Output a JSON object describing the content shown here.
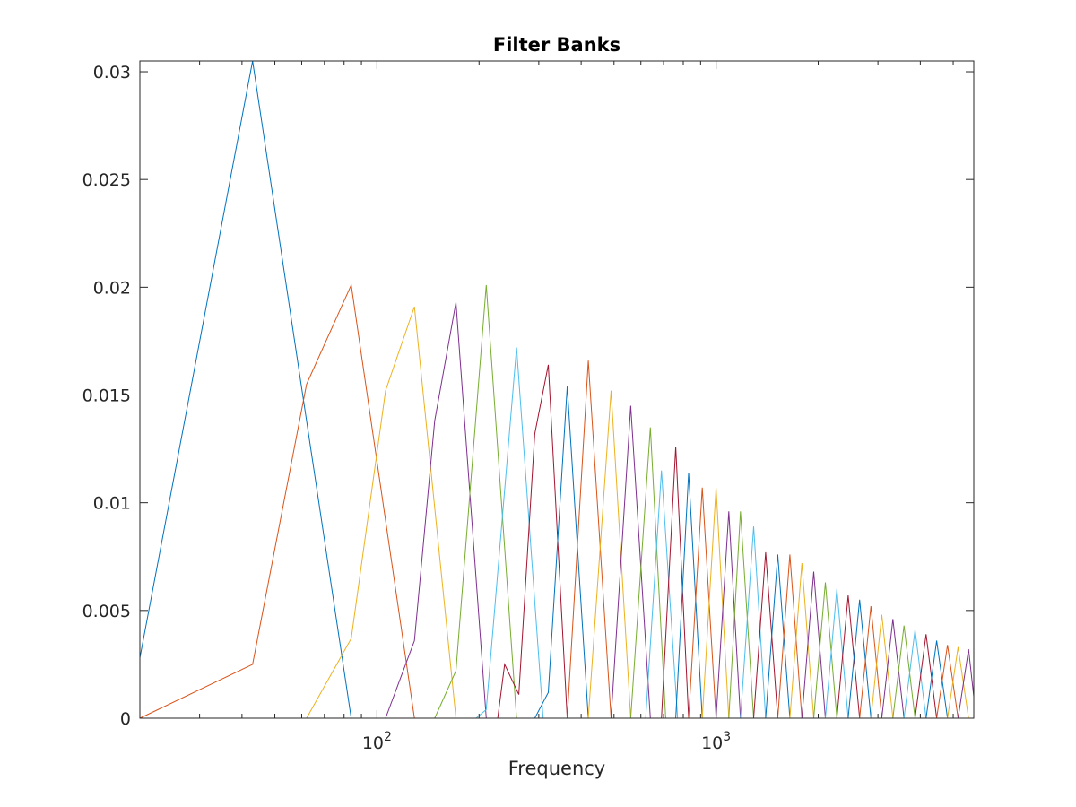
{
  "chart_data": {
    "type": "line",
    "title": "Filter Banks",
    "xlabel": "Frequency",
    "ylabel": "",
    "x_scale": "log",
    "xlim": [
      20,
      5750
    ],
    "ylim": [
      0,
      0.0305
    ],
    "grid": false,
    "legend": "none",
    "y_ticks": [
      0,
      0.005,
      0.01,
      0.015,
      0.02,
      0.025,
      0.03
    ],
    "y_tick_labels": [
      "0",
      "0.005",
      "0.01",
      "0.015",
      "0.02",
      "0.025",
      "0.03"
    ],
    "x_ticks": [
      {
        "value": 100,
        "base": "10",
        "exponent": "2"
      },
      {
        "value": 1000,
        "base": "10",
        "exponent": "3"
      }
    ],
    "colors": [
      "#0072BD",
      "#D95319",
      "#EDB120",
      "#7E2F8E",
      "#77AC30",
      "#4DBEEE",
      "#A2142F"
    ],
    "series": [
      {
        "values": [
          [
            20,
            0.0028
          ],
          [
            43,
            0.0305
          ],
          [
            84,
            0
          ]
        ]
      },
      {
        "values": [
          [
            20,
            0
          ],
          [
            43,
            0.0025
          ],
          [
            62,
            0.0155
          ],
          [
            84,
            0.0201
          ],
          [
            129,
            0
          ]
        ]
      },
      {
        "values": [
          [
            62,
            0
          ],
          [
            84,
            0.0037
          ],
          [
            106,
            0.0152
          ],
          [
            129,
            0.0191
          ],
          [
            171,
            0
          ]
        ]
      },
      {
        "values": [
          [
            106,
            0
          ],
          [
            129,
            0.0036
          ],
          [
            148,
            0.0138
          ],
          [
            171,
            0.0193
          ],
          [
            210,
            0
          ]
        ]
      },
      {
        "values": [
          [
            148,
            0
          ],
          [
            171,
            0.0022
          ],
          [
            210,
            0.0201
          ],
          [
            258,
            0
          ]
        ]
      },
      {
        "values": [
          [
            196,
            0
          ],
          [
            210,
            0.0004
          ],
          [
            258,
            0.0172
          ],
          [
            309,
            0
          ]
        ]
      },
      {
        "values": [
          [
            227,
            0
          ],
          [
            238,
            0.0025
          ],
          [
            262,
            0.0011
          ],
          [
            292,
            0.0132
          ],
          [
            320,
            0.0164
          ],
          [
            364,
            0
          ]
        ]
      },
      {
        "values": [
          [
            292,
            0
          ],
          [
            320,
            0.0012
          ],
          [
            364,
            0.0154
          ],
          [
            420,
            0
          ]
        ]
      },
      {
        "values": [
          [
            364,
            0
          ],
          [
            420,
            0.0166
          ],
          [
            490,
            0
          ]
        ]
      },
      {
        "values": [
          [
            420,
            0
          ],
          [
            490,
            0.0152
          ],
          [
            560,
            0
          ]
        ]
      },
      {
        "values": [
          [
            490,
            0
          ],
          [
            560,
            0.0145
          ],
          [
            640,
            0
          ]
        ]
      },
      {
        "values": [
          [
            560,
            0
          ],
          [
            640,
            0.0135
          ],
          [
            710,
            0
          ]
        ]
      },
      {
        "values": [
          [
            620,
            0
          ],
          [
            690,
            0.0115
          ],
          [
            770,
            0
          ]
        ]
      },
      {
        "values": [
          [
            690,
            0
          ],
          [
            760,
            0.0126
          ],
          [
            830,
            0
          ]
        ]
      },
      {
        "values": [
          [
            760,
            0
          ],
          [
            830,
            0.0114
          ],
          [
            910,
            0
          ]
        ]
      },
      {
        "values": [
          [
            830,
            0
          ],
          [
            910,
            0.0107
          ],
          [
            1000,
            0
          ]
        ]
      },
      {
        "values": [
          [
            910,
            0
          ],
          [
            1000,
            0.0107
          ],
          [
            1090,
            0
          ]
        ]
      },
      {
        "values": [
          [
            1000,
            0
          ],
          [
            1090,
            0.0096
          ],
          [
            1180,
            0
          ]
        ]
      },
      {
        "values": [
          [
            1090,
            0
          ],
          [
            1180,
            0.0096
          ],
          [
            1290,
            0
          ]
        ]
      },
      {
        "values": [
          [
            1180,
            0
          ],
          [
            1290,
            0.0089
          ],
          [
            1400,
            0
          ]
        ]
      },
      {
        "values": [
          [
            1290,
            0
          ],
          [
            1400,
            0.0077
          ],
          [
            1520,
            0
          ]
        ]
      },
      {
        "values": [
          [
            1400,
            0
          ],
          [
            1520,
            0.0076
          ],
          [
            1650,
            0
          ]
        ]
      },
      {
        "values": [
          [
            1520,
            0
          ],
          [
            1650,
            0.0076
          ],
          [
            1790,
            0
          ]
        ]
      },
      {
        "values": [
          [
            1650,
            0
          ],
          [
            1790,
            0.0072
          ],
          [
            1940,
            0
          ]
        ]
      },
      {
        "values": [
          [
            1790,
            0
          ],
          [
            1940,
            0.0068
          ],
          [
            2100,
            0
          ]
        ]
      },
      {
        "values": [
          [
            1940,
            0
          ],
          [
            2100,
            0.0063
          ],
          [
            2270,
            0
          ]
        ]
      },
      {
        "values": [
          [
            2100,
            0
          ],
          [
            2270,
            0.006
          ],
          [
            2450,
            0
          ]
        ]
      },
      {
        "values": [
          [
            2270,
            0
          ],
          [
            2450,
            0.0057
          ],
          [
            2650,
            0
          ]
        ]
      },
      {
        "values": [
          [
            2450,
            0
          ],
          [
            2650,
            0.0055
          ],
          [
            2860,
            0
          ]
        ]
      },
      {
        "values": [
          [
            2650,
            0
          ],
          [
            2860,
            0.0052
          ],
          [
            3080,
            0
          ]
        ]
      },
      {
        "values": [
          [
            2860,
            0
          ],
          [
            3080,
            0.0048
          ],
          [
            3320,
            0
          ]
        ]
      },
      {
        "values": [
          [
            3080,
            0
          ],
          [
            3320,
            0.0046
          ],
          [
            3580,
            0
          ]
        ]
      },
      {
        "values": [
          [
            3320,
            0
          ],
          [
            3580,
            0.0043
          ],
          [
            3860,
            0
          ]
        ]
      },
      {
        "values": [
          [
            3580,
            0
          ],
          [
            3860,
            0.0041
          ],
          [
            4160,
            0
          ]
        ]
      },
      {
        "values": [
          [
            3860,
            0
          ],
          [
            4160,
            0.0039
          ],
          [
            4470,
            0
          ]
        ]
      },
      {
        "values": [
          [
            4160,
            0
          ],
          [
            4470,
            0.0036
          ],
          [
            4810,
            0
          ]
        ]
      },
      {
        "values": [
          [
            4470,
            0
          ],
          [
            4810,
            0.0034
          ],
          [
            5170,
            0
          ]
        ]
      },
      {
        "values": [
          [
            4810,
            0
          ],
          [
            5170,
            0.0033
          ],
          [
            5550,
            0
          ]
        ]
      },
      {
        "values": [
          [
            5170,
            0
          ],
          [
            5550,
            0.0032
          ],
          [
            5750,
            0.001
          ]
        ]
      }
    ]
  }
}
